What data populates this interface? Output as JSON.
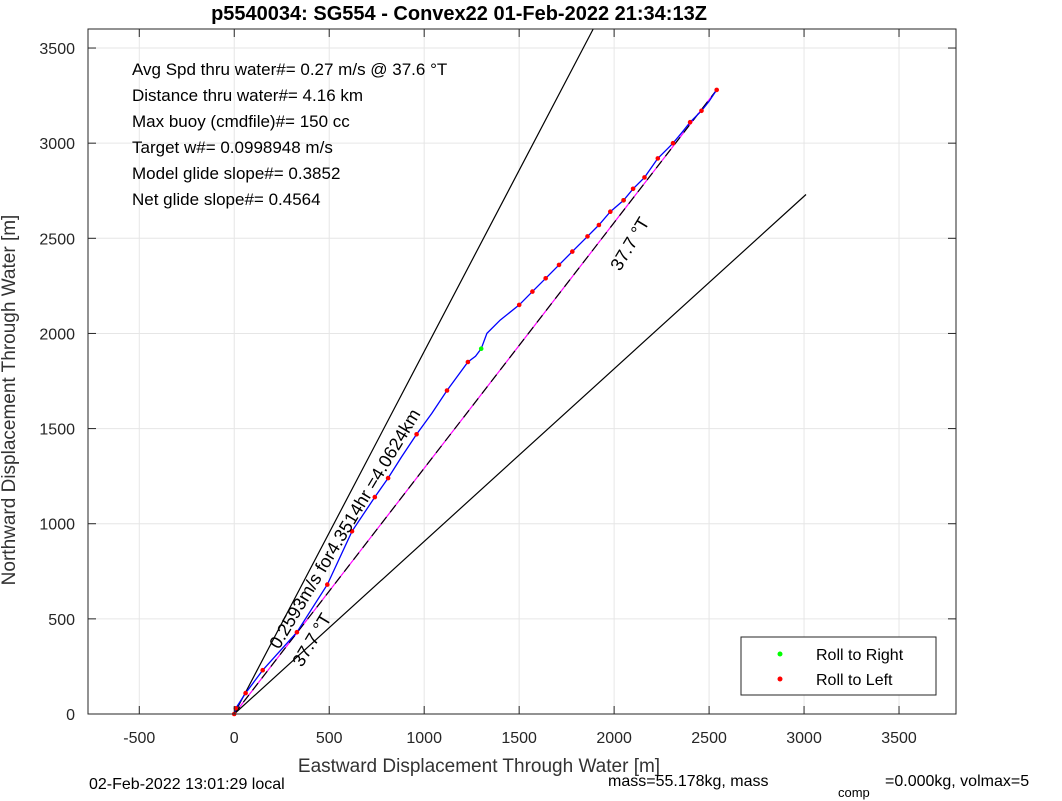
{
  "chart_data": {
    "type": "line",
    "title": "p5540034: SG554 - Convex22 01-Feb-2022 21:34:13Z",
    "xlabel": "Eastward Displacement Through Water [m]",
    "ylabel": "Northward Displacement Through Water [m]",
    "xlim": [
      -770,
      3800
    ],
    "ylim": [
      0,
      3600
    ],
    "xticks": [
      -500,
      0,
      500,
      1000,
      1500,
      2000,
      2500,
      3000,
      3500
    ],
    "yticks": [
      0,
      500,
      1000,
      1500,
      2000,
      2500,
      3000,
      3500
    ],
    "grid": true,
    "legend_position": "bottom-right",
    "info_lines": [
      "Avg Spd thru water#=  0.27 m/s @  37.6         °T",
      "Distance thru water#=  4.16 km",
      "Max buoy (cmdfile)#= 150 cc",
      "Target w#= 0.0998948 m/s",
      "Model glide slope#= 0.3852",
      "Net glide slope#= 0.4564"
    ],
    "annotations": {
      "upper_heading": "37.7 °T",
      "lower_heading": "37.7 °T",
      "speed_note": "0.2593m/s for4.3514hr =4.0624km"
    },
    "series": [
      {
        "name": "Roll to Right",
        "color": "#00ff00",
        "kind": "marker",
        "x": [
          1300,
          2050
        ],
        "y": [
          1920,
          2700
        ]
      },
      {
        "name": "Roll to Left",
        "color": "#ff0000",
        "kind": "marker",
        "x": [
          0,
          8,
          60,
          150,
          330,
          490,
          620,
          740,
          810,
          960,
          1120,
          1230,
          1500,
          1570,
          1640,
          1710,
          1780,
          1860,
          1920,
          1980,
          2050,
          2100,
          2160,
          2230,
          2310,
          2400,
          2460,
          2540
        ],
        "y": [
          0,
          30,
          110,
          230,
          430,
          680,
          960,
          1140,
          1240,
          1470,
          1700,
          1850,
          2150,
          2220,
          2290,
          2360,
          2430,
          2510,
          2570,
          2640,
          2700,
          2760,
          2820,
          2920,
          3000,
          3110,
          3170,
          3280
        ]
      },
      {
        "name": "",
        "color": "#0000ff",
        "kind": "track",
        "x": [
          0,
          8,
          60,
          150,
          330,
          490,
          620,
          740,
          810,
          880,
          960,
          1040,
          1120,
          1230,
          1270,
          1300,
          1330,
          1400,
          1500,
          1570,
          1640,
          1710,
          1780,
          1860,
          1920,
          1980,
          2050,
          2100,
          2160,
          2230,
          2280,
          2310,
          2360,
          2400,
          2460,
          2500,
          2540
        ],
        "y": [
          0,
          30,
          110,
          230,
          430,
          680,
          960,
          1140,
          1240,
          1350,
          1470,
          1580,
          1700,
          1850,
          1880,
          1920,
          2000,
          2070,
          2150,
          2220,
          2290,
          2360,
          2430,
          2510,
          2570,
          2640,
          2700,
          2760,
          2820,
          2920,
          2970,
          3000,
          3060,
          3110,
          3170,
          3220,
          3280
        ]
      },
      {
        "name": "",
        "color": "#ff00ff",
        "kind": "line",
        "x": [
          0,
          2540
        ],
        "y": [
          0,
          3280
        ]
      },
      {
        "name": "",
        "color": "#000000",
        "kind": "dashed",
        "x": [
          0,
          2540
        ],
        "y": [
          0,
          3280
        ]
      },
      {
        "name": "",
        "color": "#000000",
        "kind": "line",
        "x": [
          0,
          1890
        ],
        "y": [
          0,
          3600
        ]
      },
      {
        "name": "",
        "color": "#000000",
        "kind": "line",
        "x": [
          0,
          3010
        ],
        "y": [
          0,
          2730
        ]
      }
    ]
  },
  "footer": {
    "local_time": "02-Feb-2022 13:01:29 local",
    "mass_text": "mass=55.178kg, mass",
    "comp_sub": "comp",
    "tail_text": "=0.000kg, volmax=5"
  }
}
